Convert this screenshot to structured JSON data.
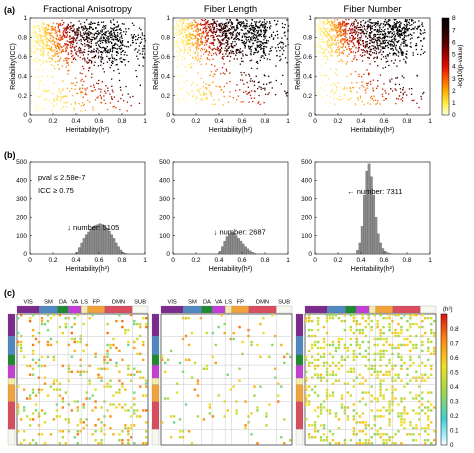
{
  "panel_labels": [
    "(a)",
    "(b)",
    "(c)"
  ],
  "chart_data": [
    {
      "type": "scatter",
      "panel": "a",
      "titles": [
        "Fractional Anisotropy",
        "Fiber Length",
        "Fiber Number"
      ],
      "xlabel": "Heritability(h²)",
      "ylabel": "Reliability(ICC)",
      "xlim": [
        0,
        1
      ],
      "ylim": [
        0,
        1
      ],
      "xticks": [
        "0",
        "0.2",
        "0.4",
        "0.6",
        "0.8",
        "1"
      ],
      "yticks": [
        "0",
        "0.2",
        "0.4",
        "0.6",
        "0.8",
        "1"
      ],
      "colorbar": {
        "label": "-log10(p-value)",
        "ticks": [
          "0",
          "1",
          "2",
          "3",
          "4",
          "5",
          "6",
          "7",
          "8"
        ],
        "range": [
          0,
          8
        ],
        "colors": [
          "#ffffe0",
          "#ffee44",
          "#ffaa00",
          "#ff5500",
          "#e01000",
          "#a00000",
          "#500000",
          "#200000",
          "#000000"
        ]
      }
    },
    {
      "type": "bar",
      "panel": "b",
      "xlabel": "Heritability(h²)",
      "xlim": [
        0,
        1
      ],
      "ylim": [
        0,
        500
      ],
      "xticks": [
        "0",
        "0.2",
        "0.4",
        "0.6",
        "0.8",
        "1"
      ],
      "yticks": [
        "0",
        "100",
        "200",
        "300",
        "400",
        "500"
      ],
      "annotation_threshold": [
        "pval ≤ 2.58e-7",
        "ICC ≥ 0.75"
      ],
      "histograms": [
        {
          "label": "↓ number: 5105",
          "bins": [
            0.4,
            0.42,
            0.44,
            0.46,
            0.48,
            0.5,
            0.52,
            0.54,
            0.56,
            0.58,
            0.6,
            0.62,
            0.64,
            0.66,
            0.68,
            0.7,
            0.72,
            0.74,
            0.76,
            0.78,
            0.8,
            0.82
          ],
          "counts": [
            10,
            35,
            60,
            85,
            105,
            120,
            135,
            145,
            155,
            160,
            165,
            160,
            150,
            140,
            125,
            105,
            85,
            60,
            40,
            22,
            10,
            4
          ]
        },
        {
          "label": "↓ number: 2687",
          "bins": [
            0.4,
            0.42,
            0.44,
            0.46,
            0.48,
            0.5,
            0.52,
            0.54,
            0.56,
            0.58,
            0.6,
            0.62,
            0.64,
            0.66,
            0.68,
            0.7,
            0.72
          ],
          "counts": [
            15,
            40,
            70,
            95,
            110,
            118,
            112,
            100,
            85,
            70,
            55,
            40,
            28,
            18,
            10,
            5,
            2
          ]
        },
        {
          "label": "← number: 7311",
          "bins": [
            0.36,
            0.38,
            0.4,
            0.42,
            0.44,
            0.46,
            0.48,
            0.5,
            0.52,
            0.54,
            0.56,
            0.58,
            0.6,
            0.62,
            0.64,
            0.66
          ],
          "counts": [
            20,
            60,
            150,
            320,
            450,
            490,
            420,
            320,
            200,
            110,
            60,
            30,
            15,
            8,
            4,
            2
          ]
        }
      ]
    },
    {
      "type": "heatmap",
      "panel": "c",
      "network_labels": [
        "VIS",
        "SM",
        "DA",
        "VA",
        "LS",
        "FP",
        "DMN",
        "SUB"
      ],
      "network_colors": [
        "#7d2a8e",
        "#4f88c0",
        "#1e8a30",
        "#c33fd6",
        "#f0eea6",
        "#f2a23a",
        "#d84e5f",
        "#f7f7f0"
      ],
      "network_fractions": [
        0.17,
        0.14,
        0.08,
        0.1,
        0.05,
        0.13,
        0.21,
        0.12
      ],
      "colorbar": {
        "label": "(h²)",
        "ticks": [
          "0",
          "0.1",
          "0.2",
          "0.3",
          "0.4",
          "0.5",
          "0.6",
          "0.7",
          "0.8"
        ],
        "range": [
          0,
          0.9
        ]
      }
    }
  ]
}
